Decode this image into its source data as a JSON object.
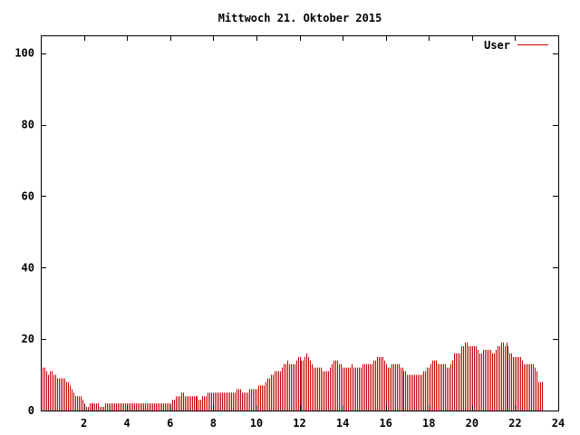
{
  "chart_data": {
    "type": "bar",
    "title": "Mittwoch 21. Oktober 2015",
    "xlabel": "",
    "ylabel": "",
    "xlim": [
      0,
      24
    ],
    "ylim": [
      0,
      105
    ],
    "xticks": [
      "2",
      "4",
      "6",
      "8",
      "10",
      "12",
      "14",
      "16",
      "18",
      "20",
      "22",
      "24"
    ],
    "yticks": [
      "0",
      "20",
      "40",
      "60",
      "80",
      "100"
    ],
    "legend_position": "top-right",
    "grid": false,
    "series": [
      {
        "name": "User",
        "color": "#c00000",
        "interval_minutes": 5,
        "values": [
          12,
          12,
          12,
          11,
          10,
          11,
          11,
          10,
          10,
          9,
          9,
          9,
          9,
          9,
          8,
          8,
          7,
          6,
          5,
          4,
          4,
          4,
          4,
          3,
          2,
          1,
          1,
          2,
          2,
          2,
          2,
          2,
          2,
          1,
          1,
          1,
          2,
          2,
          2,
          2,
          2,
          2,
          2,
          2,
          2,
          2,
          2,
          2,
          2,
          2,
          2,
          2,
          2,
          2,
          2,
          2,
          2,
          2,
          2,
          2,
          2,
          2,
          2,
          2,
          2,
          2,
          2,
          2,
          2,
          2,
          2,
          2,
          2,
          3,
          3,
          4,
          4,
          4,
          5,
          5,
          4,
          4,
          4,
          4,
          4,
          4,
          4,
          4,
          3,
          3,
          4,
          4,
          4,
          5,
          5,
          5,
          5,
          5,
          5,
          5,
          5,
          5,
          5,
          5,
          5,
          5,
          5,
          5,
          5,
          6,
          6,
          6,
          5,
          5,
          5,
          5,
          6,
          6,
          6,
          6,
          6,
          7,
          7,
          7,
          7,
          8,
          9,
          9,
          10,
          10,
          11,
          11,
          11,
          11,
          12,
          13,
          13,
          14,
          13,
          13,
          13,
          13,
          14,
          15,
          15,
          14,
          14,
          15,
          16,
          15,
          14,
          13,
          12,
          12,
          12,
          12,
          12,
          11,
          11,
          11,
          11,
          12,
          13,
          14,
          14,
          14,
          13,
          13,
          12,
          12,
          12,
          12,
          12,
          13,
          12,
          12,
          12,
          12,
          12,
          13,
          13,
          13,
          13,
          13,
          13,
          14,
          14,
          15,
          15,
          15,
          15,
          14,
          13,
          12,
          12,
          13,
          13,
          13,
          13,
          13,
          12,
          12,
          11,
          11,
          10,
          10,
          10,
          10,
          10,
          10,
          10,
          10,
          10,
          11,
          11,
          12,
          12,
          13,
          14,
          14,
          14,
          13,
          13,
          13,
          13,
          13,
          12,
          12,
          13,
          14,
          16,
          16,
          16,
          16,
          18,
          18,
          19,
          19,
          18,
          18,
          18,
          18,
          18,
          17,
          16,
          16,
          17,
          17,
          17,
          17,
          17,
          16,
          16,
          17,
          18,
          18,
          19,
          19,
          18,
          19,
          18,
          16,
          16,
          15,
          15,
          15,
          15,
          15,
          14,
          13,
          13,
          13,
          13,
          13,
          13,
          12,
          11,
          8,
          8,
          8
        ]
      }
    ]
  }
}
